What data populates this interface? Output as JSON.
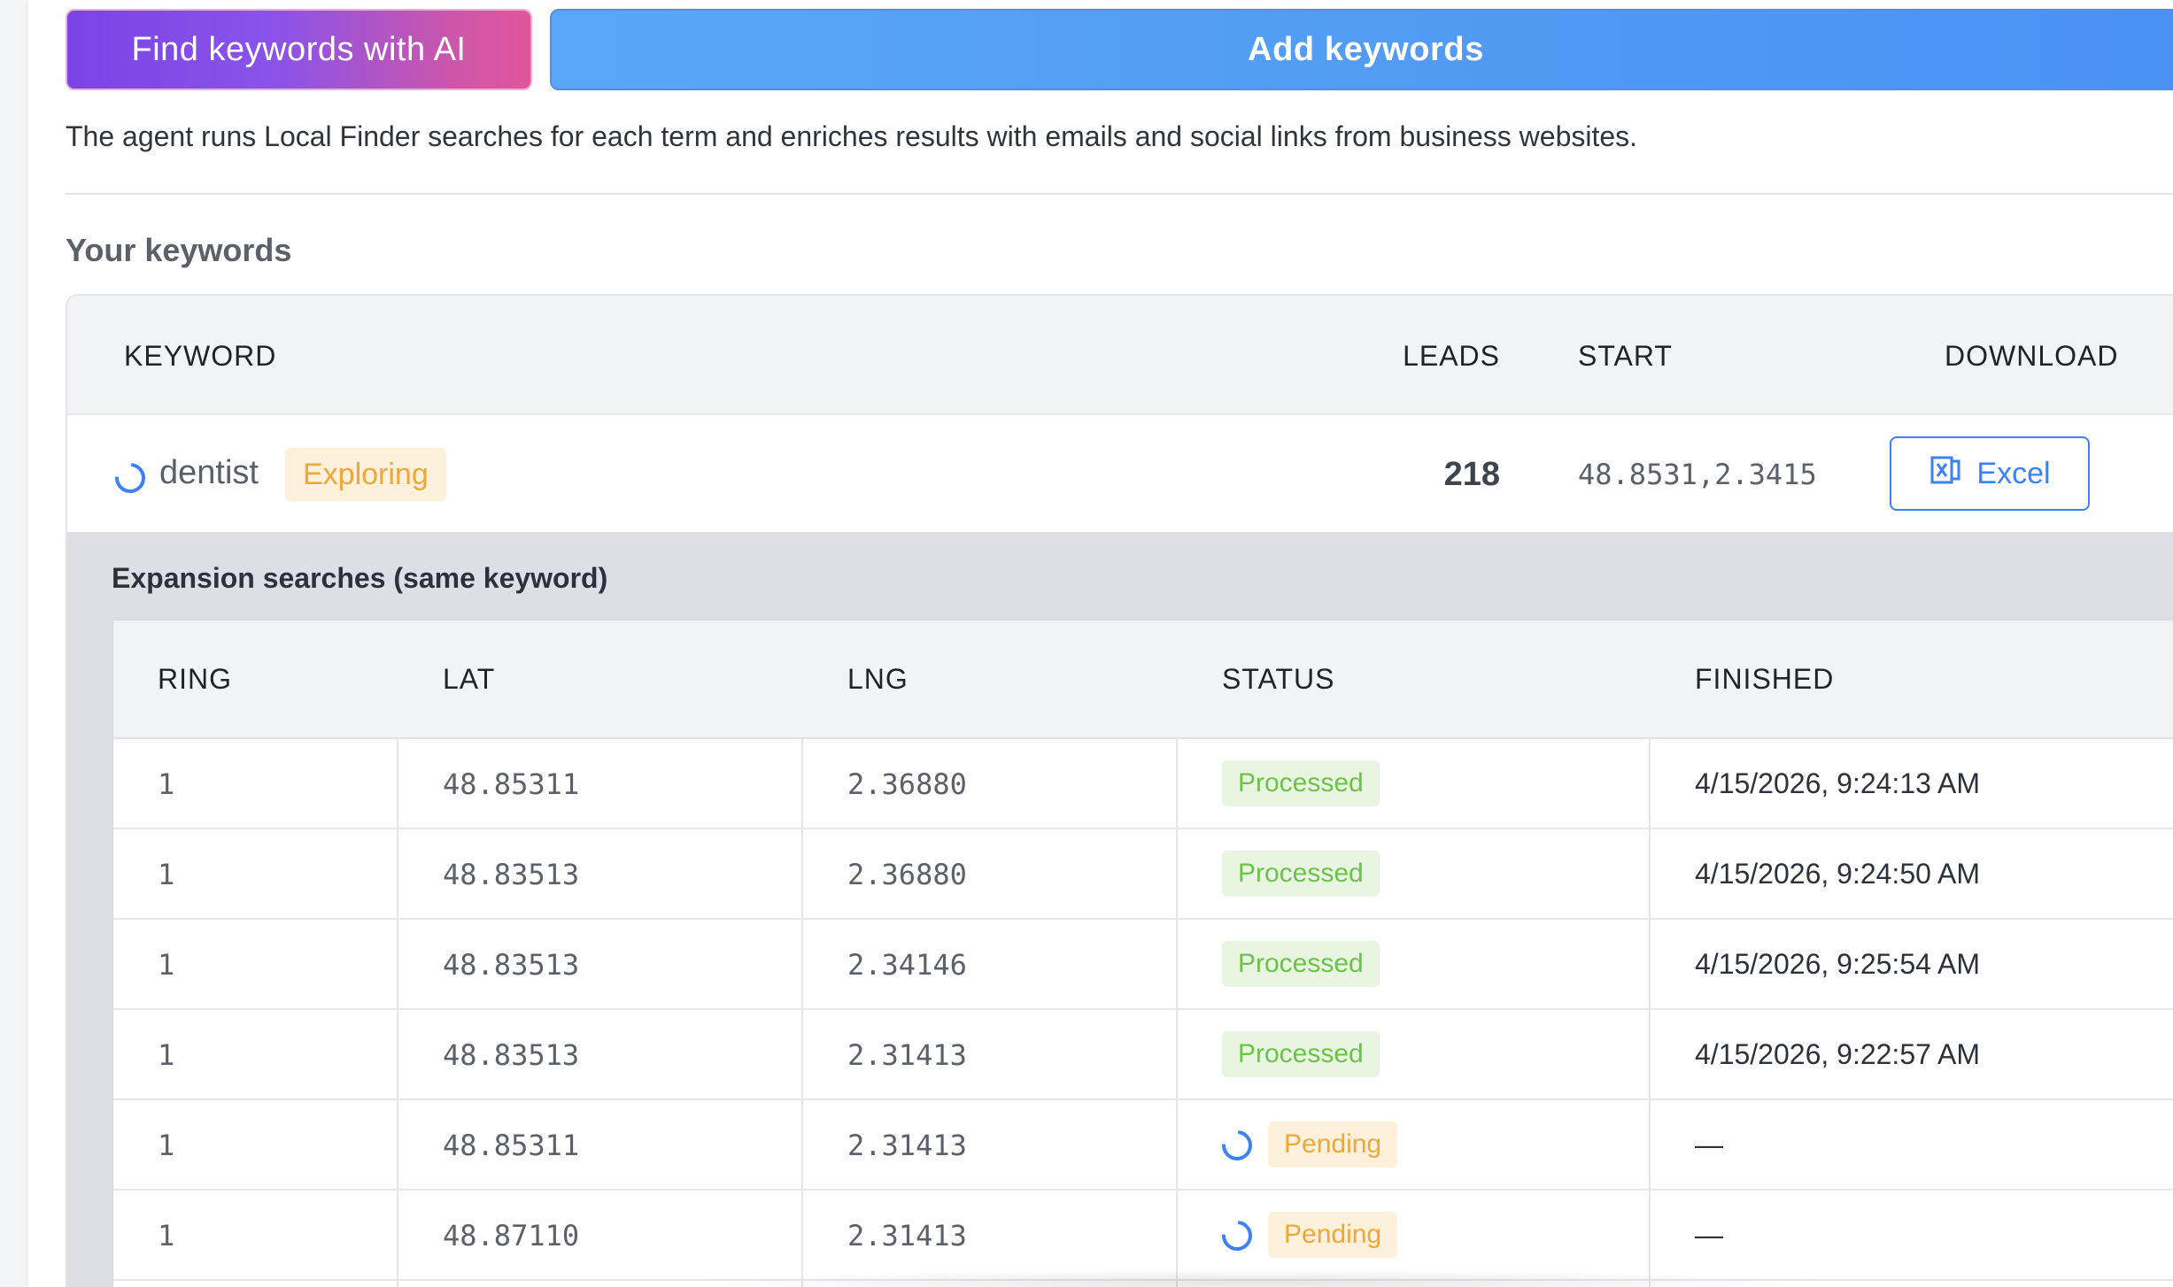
{
  "actions": {
    "find_ai_label": "Find keywords with AI",
    "add_keywords_label": "Add keywords"
  },
  "description": "The agent runs Local Finder searches for each term and enriches results with emails and social links from business websites.",
  "section_title": "Your keywords",
  "keywords_table": {
    "headers": [
      "KEYWORD",
      "LEADS",
      "START",
      "DOWNLOAD"
    ],
    "row": {
      "keyword": "dentist",
      "status_badge": "Exploring",
      "leads": "218",
      "start": "48.8531,2.3415",
      "download_label": "Excel",
      "icons": [
        "spinner-icon",
        "excel-icon"
      ]
    }
  },
  "expansion": {
    "title": "Expansion searches (same keyword)",
    "headers": [
      "RING",
      "LAT",
      "LNG",
      "STATUS",
      "FINISHED"
    ],
    "rows": [
      {
        "ring": "1",
        "lat": "48.85311",
        "lng": "2.36880",
        "status": "Processed",
        "finished": "4/15/2026, 9:24:13 AM"
      },
      {
        "ring": "1",
        "lat": "48.83513",
        "lng": "2.36880",
        "status": "Processed",
        "finished": "4/15/2026, 9:24:50 AM"
      },
      {
        "ring": "1",
        "lat": "48.83513",
        "lng": "2.34146",
        "status": "Processed",
        "finished": "4/15/2026, 9:25:54 AM"
      },
      {
        "ring": "1",
        "lat": "48.83513",
        "lng": "2.31413",
        "status": "Processed",
        "finished": "4/15/2026, 9:22:57 AM"
      },
      {
        "ring": "1",
        "lat": "48.85311",
        "lng": "2.31413",
        "status": "Pending",
        "finished": "—"
      },
      {
        "ring": "1",
        "lat": "48.87110",
        "lng": "2.31413",
        "status": "Pending",
        "finished": "—"
      }
    ]
  },
  "colors": {
    "primary_blue": "#3b82f6",
    "ai_gradient_start": "#7a44e6",
    "ai_gradient_end": "#e0559a",
    "processed_green": "#6cc24a",
    "pending_orange": "#f0a73a"
  }
}
